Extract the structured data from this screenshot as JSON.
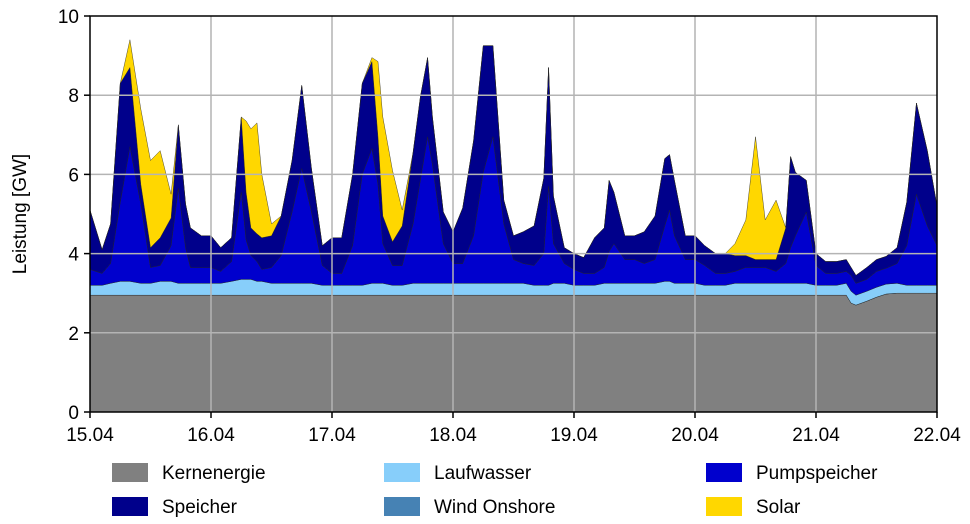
{
  "chart_data": {
    "type": "area",
    "stacked": true,
    "ylabel": "Leistung [GW]",
    "xlabel": "",
    "ylim": [
      0,
      10
    ],
    "yticks": [
      "0",
      "2",
      "4",
      "6",
      "8",
      "10"
    ],
    "xlim": [
      0,
      7
    ],
    "xticks": [
      "15.04",
      "16.04",
      "17.04",
      "18.04",
      "19.04",
      "20.04",
      "21.04",
      "22.04"
    ],
    "grid": true,
    "legend_position": "bottom",
    "x": [
      0,
      0.1,
      0.17,
      0.25,
      0.33,
      0.42,
      0.5,
      0.58,
      0.67,
      0.73,
      0.79,
      0.83,
      0.92,
      1.0,
      1.08,
      1.17,
      1.25,
      1.29,
      1.33,
      1.38,
      1.42,
      1.5,
      1.58,
      1.67,
      1.75,
      1.83,
      1.92,
      2.0,
      2.08,
      2.17,
      2.25,
      2.33,
      2.38,
      2.42,
      2.5,
      2.58,
      2.67,
      2.73,
      2.79,
      2.83,
      2.92,
      3.0,
      3.08,
      3.17,
      3.25,
      3.33,
      3.42,
      3.5,
      3.58,
      3.67,
      3.75,
      3.79,
      3.83,
      3.92,
      4.0,
      4.08,
      4.17,
      4.25,
      4.29,
      4.33,
      4.42,
      4.5,
      4.58,
      4.67,
      4.75,
      4.79,
      4.83,
      4.92,
      5.0,
      5.08,
      5.17,
      5.25,
      5.33,
      5.42,
      5.5,
      5.58,
      5.67,
      5.75,
      5.79,
      5.83,
      5.92,
      6.0,
      6.08,
      6.17,
      6.25,
      6.29,
      6.33,
      6.42,
      6.5,
      6.58,
      6.67,
      6.75,
      6.83,
      6.92,
      7.0
    ],
    "series": [
      {
        "name": "Kernenergie",
        "color": "#808080",
        "values": [
          2.95,
          2.95,
          2.95,
          2.95,
          2.95,
          2.95,
          2.95,
          2.95,
          2.95,
          2.95,
          2.95,
          2.95,
          2.95,
          2.95,
          2.95,
          2.95,
          2.95,
          2.95,
          2.95,
          2.95,
          2.95,
          2.95,
          2.95,
          2.95,
          2.95,
          2.95,
          2.95,
          2.95,
          2.95,
          2.95,
          2.95,
          2.95,
          2.95,
          2.95,
          2.95,
          2.95,
          2.95,
          2.95,
          2.95,
          2.95,
          2.95,
          2.95,
          2.95,
          2.95,
          2.95,
          2.95,
          2.95,
          2.95,
          2.95,
          2.95,
          2.95,
          2.95,
          2.95,
          2.95,
          2.95,
          2.95,
          2.95,
          2.95,
          2.95,
          2.95,
          2.95,
          2.95,
          2.95,
          2.95,
          2.95,
          2.95,
          2.95,
          2.95,
          2.95,
          2.95,
          2.95,
          2.95,
          2.95,
          2.95,
          2.95,
          2.95,
          2.95,
          2.95,
          2.95,
          2.95,
          2.95,
          2.95,
          2.95,
          2.95,
          2.95,
          2.75,
          2.7,
          2.8,
          2.9,
          2.98,
          3.0,
          3.0,
          3.0,
          3.0,
          3.0
        ]
      },
      {
        "name": "Wind Onshore",
        "color": "#4682b4",
        "values": [
          0,
          0,
          0,
          0,
          0,
          0,
          0,
          0,
          0,
          0,
          0,
          0,
          0,
          0,
          0,
          0,
          0,
          0,
          0,
          0,
          0,
          0,
          0,
          0,
          0,
          0,
          0,
          0,
          0,
          0,
          0,
          0,
          0,
          0,
          0,
          0,
          0,
          0,
          0,
          0,
          0,
          0,
          0,
          0,
          0,
          0,
          0,
          0,
          0,
          0,
          0,
          0,
          0,
          0,
          0,
          0,
          0,
          0,
          0,
          0,
          0,
          0,
          0,
          0,
          0,
          0,
          0,
          0,
          0,
          0,
          0,
          0,
          0,
          0,
          0,
          0,
          0,
          0,
          0,
          0,
          0,
          0,
          0,
          0,
          0,
          0,
          0,
          0,
          0,
          0,
          0,
          0,
          0,
          0,
          0
        ]
      },
      {
        "name": "Laufwasser",
        "color": "#87cefa",
        "values": [
          0.25,
          0.25,
          0.3,
          0.35,
          0.35,
          0.3,
          0.3,
          0.35,
          0.35,
          0.3,
          0.3,
          0.3,
          0.3,
          0.3,
          0.3,
          0.35,
          0.4,
          0.4,
          0.4,
          0.35,
          0.35,
          0.3,
          0.3,
          0.3,
          0.3,
          0.3,
          0.25,
          0.25,
          0.25,
          0.25,
          0.25,
          0.3,
          0.3,
          0.3,
          0.25,
          0.25,
          0.3,
          0.3,
          0.3,
          0.3,
          0.3,
          0.3,
          0.3,
          0.3,
          0.3,
          0.3,
          0.3,
          0.3,
          0.3,
          0.25,
          0.25,
          0.25,
          0.3,
          0.3,
          0.25,
          0.25,
          0.25,
          0.3,
          0.3,
          0.3,
          0.3,
          0.3,
          0.3,
          0.3,
          0.35,
          0.35,
          0.3,
          0.3,
          0.3,
          0.25,
          0.25,
          0.25,
          0.3,
          0.3,
          0.3,
          0.3,
          0.3,
          0.3,
          0.3,
          0.3,
          0.3,
          0.25,
          0.25,
          0.25,
          0.3,
          0.3,
          0.25,
          0.25,
          0.25,
          0.25,
          0.25,
          0.2,
          0.2,
          0.2,
          0.2
        ]
      },
      {
        "name": "Pumpspeicher",
        "color": "#0000cd",
        "values": [
          0.4,
          0.3,
          0.5,
          2.0,
          3.4,
          2.0,
          0.4,
          0.4,
          0.9,
          2.4,
          0.9,
          0.4,
          0.4,
          0.4,
          0.3,
          0.5,
          2.2,
          1.0,
          0.6,
          0.5,
          0.3,
          0.4,
          0.7,
          1.8,
          2.9,
          1.8,
          0.5,
          0.3,
          0.3,
          1.0,
          2.8,
          3.4,
          2.5,
          1.0,
          0.5,
          0.5,
          1.5,
          2.6,
          3.7,
          3.0,
          1.0,
          0.5,
          0.5,
          1.2,
          2.8,
          3.7,
          1.5,
          0.6,
          0.5,
          0.5,
          0.8,
          2.5,
          1.0,
          0.5,
          0.4,
          0.3,
          0.3,
          0.4,
          0.8,
          1.0,
          0.6,
          0.6,
          0.5,
          0.6,
          1.4,
          1.8,
          1.2,
          0.6,
          0.6,
          0.5,
          0.3,
          0.3,
          0.3,
          0.4,
          0.4,
          0.4,
          0.3,
          0.5,
          0.9,
          1.2,
          1.8,
          0.5,
          0.3,
          0.3,
          0.3,
          0.4,
          0.3,
          0.3,
          0.4,
          0.4,
          0.5,
          1.0,
          2.3,
          1.5,
          1.0
        ]
      },
      {
        "name": "Speicher",
        "color": "#00008b",
        "values": [
          1.5,
          0.6,
          1.0,
          3.0,
          2.0,
          0.5,
          0.5,
          0.7,
          0.7,
          1.6,
          1.1,
          1.0,
          0.8,
          0.8,
          0.6,
          0.6,
          1.9,
          1.2,
          0.7,
          0.7,
          0.8,
          0.8,
          1.0,
          1.3,
          2.1,
          1.1,
          0.5,
          0.9,
          0.9,
          1.8,
          2.3,
          2.2,
          1.2,
          0.7,
          0.6,
          1.0,
          1.8,
          2.1,
          2.0,
          1.2,
          0.8,
          0.8,
          1.4,
          2.4,
          3.2,
          2.3,
          0.6,
          0.6,
          0.8,
          1.0,
          1.9,
          3.0,
          1.2,
          0.4,
          0.4,
          0.4,
          0.9,
          1.0,
          1.8,
          1.3,
          0.6,
          0.6,
          0.8,
          1.1,
          1.7,
          1.4,
          1.4,
          0.6,
          0.6,
          0.5,
          0.5,
          0.5,
          0.4,
          0.3,
          0.2,
          0.2,
          0.3,
          0.9,
          2.3,
          1.6,
          0.8,
          0.3,
          0.3,
          0.3,
          0.3,
          0.2,
          0.2,
          0.3,
          0.3,
          0.3,
          0.4,
          1.1,
          2.3,
          1.9,
          1.0
        ]
      },
      {
        "name": "Solar",
        "color": "#ffd700",
        "values": [
          0,
          0,
          0,
          0,
          0.7,
          1.9,
          2.2,
          2.2,
          0.6,
          0,
          0,
          0,
          0,
          0,
          0,
          0,
          0,
          1.8,
          2.5,
          2.8,
          1.6,
          0.3,
          0,
          0,
          0,
          0,
          0,
          0,
          0,
          0,
          0,
          0.1,
          1.9,
          2.5,
          1.8,
          0.4,
          0,
          0,
          0,
          0,
          0,
          0,
          0,
          0,
          0,
          0,
          0,
          0,
          0,
          0,
          0,
          0,
          0,
          0,
          0,
          0,
          0,
          0,
          0,
          0,
          0,
          0,
          0,
          0,
          0,
          0,
          0,
          0,
          0,
          0,
          0,
          0,
          0.3,
          0.9,
          3.1,
          1.0,
          1.5,
          0,
          0,
          0,
          0,
          0,
          0,
          0,
          0,
          0,
          0,
          0,
          0,
          0,
          0,
          0,
          0,
          0,
          0
        ]
      }
    ],
    "legend": [
      {
        "name": "Kernenergie",
        "color": "#808080"
      },
      {
        "name": "Laufwasser",
        "color": "#87cefa"
      },
      {
        "name": "Pumpspeicher",
        "color": "#0000cd"
      },
      {
        "name": "Speicher",
        "color": "#00008b"
      },
      {
        "name": "Wind Onshore",
        "color": "#4682b4"
      },
      {
        "name": "Solar",
        "color": "#ffd700"
      }
    ],
    "grid_color": "#b4b4b4"
  }
}
